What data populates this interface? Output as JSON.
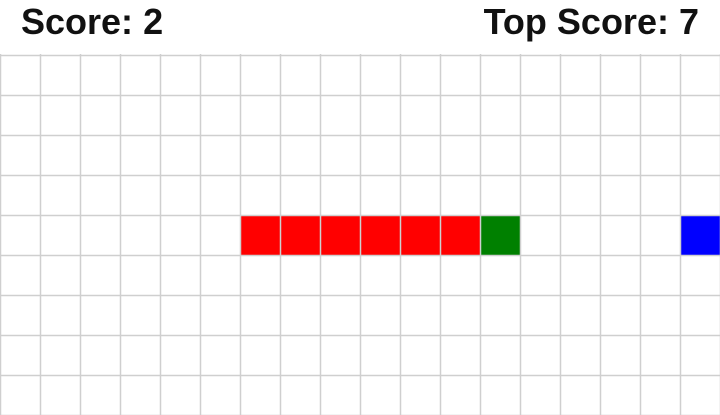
{
  "hud": {
    "score_label": "Score:",
    "score_value": "2",
    "top_score_label": "Top Score:",
    "top_score_value": "7"
  },
  "board": {
    "columns": 18,
    "rows": 9,
    "grid_color": "#cfcfcf",
    "snake": {
      "color": "#ff0000",
      "head_color": "#008000",
      "body": [
        [
          6,
          4
        ],
        [
          7,
          4
        ],
        [
          8,
          4
        ],
        [
          9,
          4
        ],
        [
          10,
          4
        ],
        [
          11,
          4
        ]
      ],
      "head": [
        12,
        4
      ]
    },
    "food": {
      "color": "#0000ff",
      "cell": [
        17,
        4
      ]
    }
  }
}
